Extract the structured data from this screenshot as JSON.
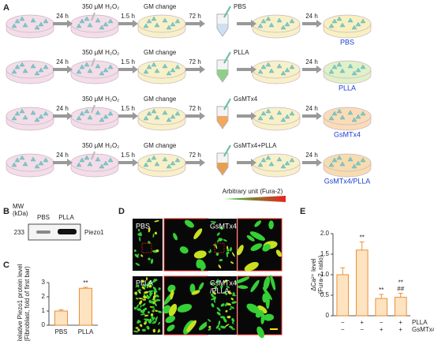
{
  "panel_labels": [
    "A",
    "B",
    "C",
    "D",
    "E"
  ],
  "panel_a": {
    "steps": {
      "t1": "24 h",
      "treat": "350 μM H₂O₂",
      "t2": "1.5 h",
      "change": "GM change",
      "t3": "72 h",
      "t4": "24 h"
    },
    "rows": [
      {
        "agent": "PBS",
        "result": "PBS"
      },
      {
        "agent": "PLLA",
        "result": "PLLA"
      },
      {
        "agent": "GsMTx4",
        "result": "GsMTx4"
      },
      {
        "agent": "GsMTx4+PLLA",
        "result": "GsMTx4/PLLA"
      }
    ]
  },
  "panel_b": {
    "mw_label": [
      "MW",
      "(kDa)"
    ],
    "mw": 233,
    "lanes": [
      "PBS",
      "PLLA"
    ],
    "protein": "Piezo1"
  },
  "panel_d": {
    "scale": "Arbitrary unit (Fura-2)",
    "groups": [
      "PBS",
      "GsMTx4",
      "PLLA",
      "GsMTx4",
      "/PLLA"
    ]
  },
  "chart_data": [
    {
      "type": "bar",
      "ylabel": [
        "Relative Piezo1 protein level",
        "(Fibroblast, fold of first bar)"
      ],
      "categories": [
        "PBS",
        "PLLA"
      ],
      "values": [
        1.0,
        2.6
      ],
      "errors": [
        0.08,
        0.07
      ],
      "annotations": [
        null,
        "**"
      ],
      "color": "#fde3c0",
      "edge": "#e8862a",
      "ylim": [
        0,
        3
      ],
      "yticks": [
        0,
        1,
        2,
        3
      ]
    },
    {
      "type": "bar",
      "ylabel": [
        "ΔCa²⁺ level",
        "(Fura-2, ratio)"
      ],
      "values": [
        1.0,
        1.6,
        0.42,
        0.45
      ],
      "errors": [
        0.17,
        0.2,
        0.1,
        0.1
      ],
      "annotations": [
        null,
        "**",
        "**",
        "**"
      ],
      "annotations2": [
        null,
        null,
        null,
        "##"
      ],
      "conditions": [
        {
          "name": "PLLA",
          "marks": [
            "−",
            "+",
            "−",
            "+"
          ]
        },
        {
          "name": "GsMTx4",
          "marks": [
            "−",
            "−",
            "+",
            "+"
          ]
        }
      ],
      "color": "#fde3c0",
      "edge": "#e8862a",
      "ylim": [
        0,
        2
      ],
      "yticks": [
        0,
        0.5,
        {
          "value": 1,
          "label": "1.0"
        },
        1.5,
        {
          "value": 2,
          "label": "2.0"
        }
      ]
    }
  ]
}
